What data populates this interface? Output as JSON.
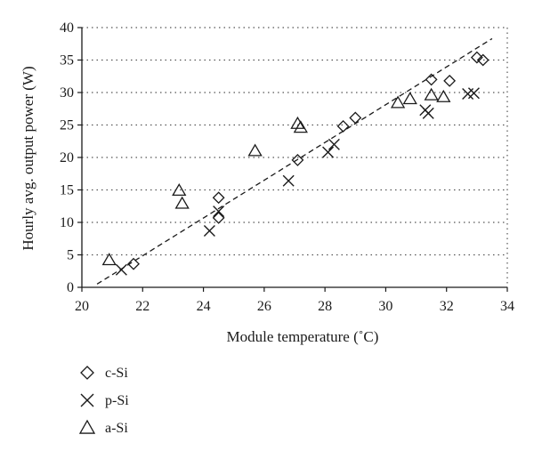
{
  "chart_data": {
    "type": "scatter",
    "xlabel": "Module temperature (˚C)",
    "ylabel": "Hourly avg. output power (W)",
    "xlim": [
      20,
      34
    ],
    "ylim": [
      0,
      40
    ],
    "x_ticks": [
      "20",
      "22",
      "24",
      "26",
      "28",
      "30",
      "32",
      "34"
    ],
    "y_ticks": [
      "0",
      "5",
      "10",
      "15",
      "20",
      "25",
      "30",
      "35",
      "40"
    ],
    "grid": "horizontal dotted",
    "legend_position": "below-left",
    "series": [
      {
        "name": "c-Si",
        "marker": "diamond",
        "points": [
          [
            21.7,
            3.6
          ],
          [
            24.5,
            10.7
          ],
          [
            24.5,
            13.8
          ],
          [
            27.1,
            19.6
          ],
          [
            28.6,
            24.8
          ],
          [
            29.0,
            26.1
          ],
          [
            31.5,
            32.0
          ],
          [
            32.1,
            31.8
          ],
          [
            33.0,
            35.4
          ],
          [
            33.2,
            35.0
          ]
        ]
      },
      {
        "name": "p-Si",
        "marker": "cross",
        "points": [
          [
            21.3,
            2.7
          ],
          [
            24.2,
            8.7
          ],
          [
            24.5,
            11.7
          ],
          [
            26.8,
            16.4
          ],
          [
            28.1,
            20.8
          ],
          [
            28.3,
            22.0
          ],
          [
            31.3,
            27.3
          ],
          [
            31.4,
            26.8
          ],
          [
            32.7,
            29.8
          ],
          [
            32.9,
            29.9
          ]
        ]
      },
      {
        "name": "a-Si",
        "marker": "triangle",
        "points": [
          [
            20.9,
            4.2
          ],
          [
            23.2,
            14.9
          ],
          [
            23.3,
            12.9
          ],
          [
            25.7,
            21.0
          ],
          [
            27.1,
            25.2
          ],
          [
            27.2,
            24.6
          ],
          [
            30.4,
            28.4
          ],
          [
            30.8,
            29.0
          ],
          [
            31.5,
            29.6
          ],
          [
            31.9,
            29.3
          ]
        ]
      }
    ],
    "trendline": {
      "style": "dashed",
      "x": [
        20.5,
        33.5
      ],
      "y": [
        0.5,
        38.3
      ]
    }
  },
  "colors": {
    "axis": "#1a1a1a",
    "grid": "#555555",
    "marker": "#1a1a1a"
  }
}
